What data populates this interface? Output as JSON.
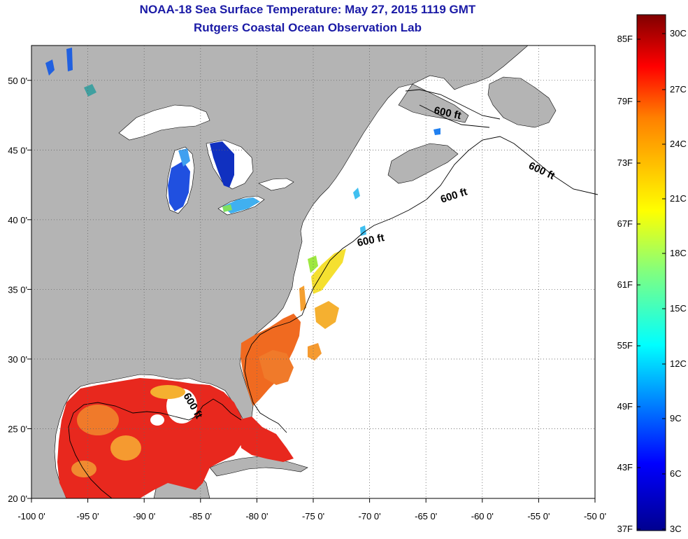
{
  "title_line1": "NOAA-18 Sea Surface Temperature:  May 27, 2015 1119 GMT",
  "title_line2": "Rutgers Coastal Ocean Observation Lab",
  "map": {
    "lon_range": [
      -100,
      -50
    ],
    "lat_range": [
      20,
      52.5
    ],
    "lon_ticks": [
      {
        "value": -100,
        "label": "-100 0'"
      },
      {
        "value": -95,
        "label": "-95 0'"
      },
      {
        "value": -90,
        "label": "-90 0'"
      },
      {
        "value": -85,
        "label": "-85 0'"
      },
      {
        "value": -80,
        "label": "-80 0'"
      },
      {
        "value": -75,
        "label": "-75 0'"
      },
      {
        "value": -70,
        "label": "-70 0'"
      },
      {
        "value": -65,
        "label": "-65 0'"
      },
      {
        "value": -60,
        "label": "-60 0'"
      },
      {
        "value": -55,
        "label": "-55 0'"
      },
      {
        "value": -50,
        "label": "-50 0'"
      }
    ],
    "lat_ticks": [
      {
        "value": 20,
        "label": "20 0'"
      },
      {
        "value": 25,
        "label": "25 0'"
      },
      {
        "value": 30,
        "label": "30 0'"
      },
      {
        "value": 35,
        "label": "35 0'"
      },
      {
        "value": 40,
        "label": "40 0'"
      },
      {
        "value": 45,
        "label": "45 0'"
      },
      {
        "value": 50,
        "label": "50 0'"
      }
    ],
    "contour_labels": [
      "600 ft",
      "600 ft",
      "600 ft",
      "600 ft",
      "600 ft"
    ],
    "land_color": "#b4b4b4"
  },
  "colorbar": {
    "fahrenheit_labels": [
      "85F",
      "79F",
      "73F",
      "67F",
      "61F",
      "55F",
      "49F",
      "43F",
      "37F"
    ],
    "celsius_labels": [
      "30C",
      "27C",
      "24C",
      "21C",
      "18C",
      "15C",
      "12C",
      "9C",
      "6C",
      "3C"
    ],
    "colors": [
      "#800000",
      "#ff0000",
      "#ff8000",
      "#ffff00",
      "#80ff80",
      "#00ffff",
      "#0080ff",
      "#0000ff",
      "#00008f"
    ]
  }
}
